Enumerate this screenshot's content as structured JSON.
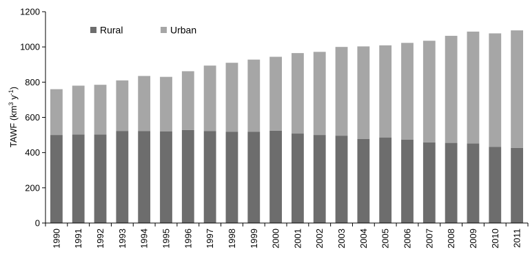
{
  "chart_data": {
    "type": "bar",
    "stacked": true,
    "title": "",
    "xlabel": "",
    "ylabel": {
      "prefix": "TAWF (km",
      "sup1": "3",
      "mid": " y",
      "sup2": "-1",
      "suffix": ")"
    },
    "ylim": [
      0,
      1200
    ],
    "yticks": [
      0,
      200,
      400,
      600,
      800,
      1000,
      1200
    ],
    "grid": false,
    "legend_position": "top-left",
    "categories": [
      "1990",
      "1991",
      "1992",
      "1993",
      "1994",
      "1995",
      "1996",
      "1997",
      "1998",
      "1999",
      "2000",
      "2001",
      "2002",
      "2003",
      "2004",
      "2005",
      "2006",
      "2007",
      "2008",
      "2009",
      "2010",
      "2011"
    ],
    "series": [
      {
        "name": "Rural",
        "color": "#6d6d6d",
        "values": [
          500,
          503,
          503,
          523,
          522,
          520,
          528,
          522,
          518,
          518,
          524,
          508,
          500,
          496,
          478,
          486,
          474,
          458,
          455,
          452,
          432,
          427
        ]
      },
      {
        "name": "Urban",
        "color": "#a6a6a6",
        "values": [
          260,
          277,
          282,
          287,
          313,
          310,
          334,
          372,
          392,
          410,
          420,
          457,
          472,
          504,
          525,
          523,
          549,
          577,
          608,
          635,
          645,
          667
        ]
      }
    ]
  }
}
